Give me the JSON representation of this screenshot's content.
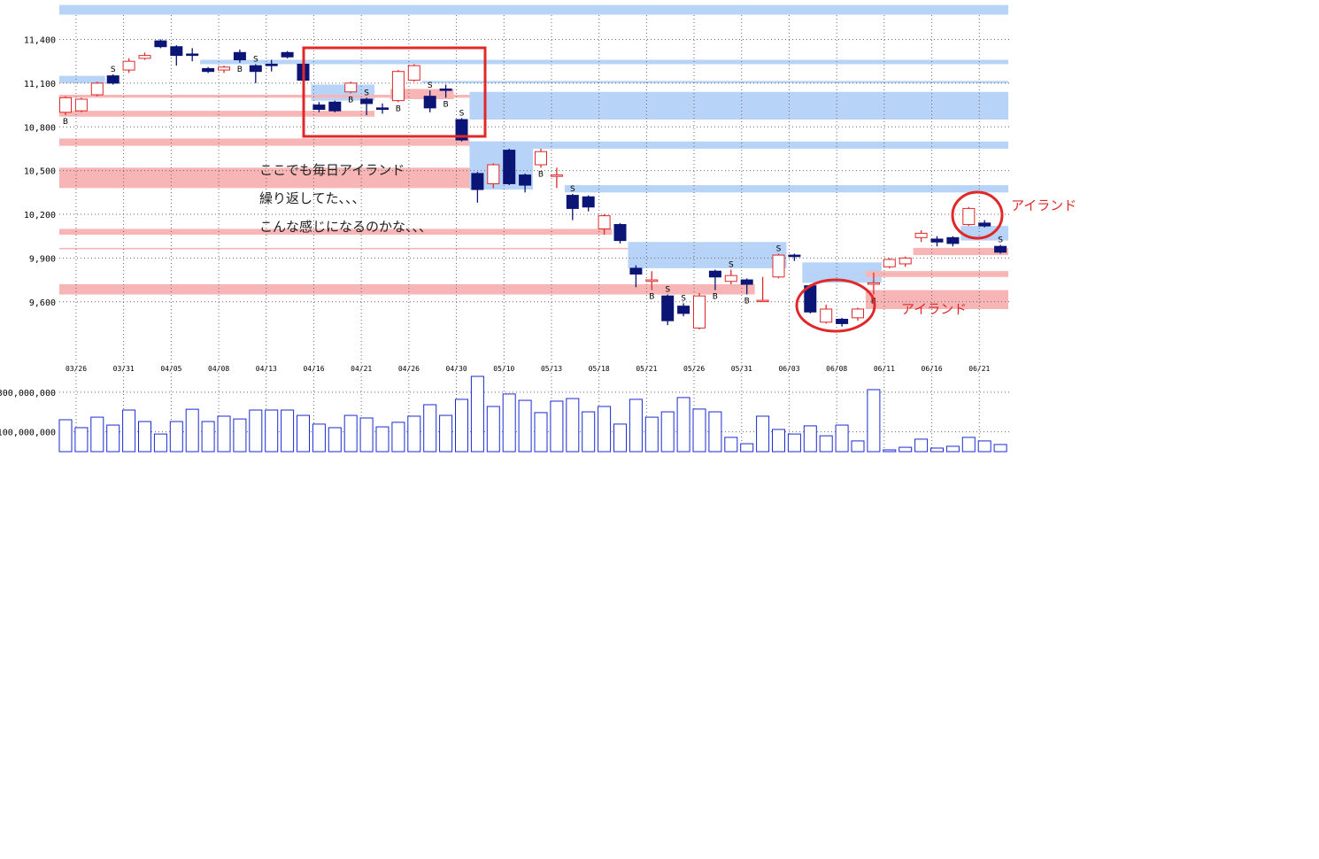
{
  "chart_data": {
    "type": "candlestick",
    "categories": [
      "03/26",
      null,
      null,
      "03/31",
      null,
      null,
      "04/05",
      null,
      null,
      "04/08",
      null,
      null,
      "04/13",
      null,
      null,
      "04/16",
      null,
      null,
      "04/21",
      null,
      null,
      "04/26",
      null,
      null,
      "04/30",
      null,
      null,
      "05/10",
      null,
      null,
      "05/13",
      null,
      null,
      "05/18",
      null,
      null,
      "05/21",
      null,
      null,
      "05/26",
      null,
      null,
      "05/31",
      null,
      null,
      "06/03",
      null,
      null,
      "06/08",
      null,
      null,
      "06/11",
      null,
      null,
      "06/16",
      null,
      null,
      "06/21",
      null,
      null
    ],
    "open": [
      10900,
      10910,
      11020,
      11150,
      11190,
      11270,
      11390,
      11350,
      11300,
      11200,
      11190,
      11310,
      11220,
      11230,
      11310,
      11230,
      10950,
      10970,
      11040,
      10990,
      10930,
      10980,
      11120,
      11010,
      11060,
      10850,
      10480,
      10410,
      10640,
      10470,
      10540,
      10460,
      10330,
      10320,
      10100,
      10130,
      9830,
      9740,
      9640,
      9570,
      9420,
      9810,
      9740,
      9750,
      9610,
      9770,
      9920,
      9710,
      9460,
      9480,
      9490,
      9720,
      9840,
      9860,
      10040,
      10030,
      10040,
      10130,
      10140,
      9980
    ],
    "high": [
      11010,
      11000,
      11110,
      11160,
      11270,
      11310,
      11400,
      11360,
      11340,
      11210,
      11220,
      11330,
      11230,
      11260,
      11320,
      11230,
      10970,
      10980,
      11110,
      11000,
      10960,
      11190,
      11230,
      11050,
      11090,
      10860,
      10490,
      10550,
      10650,
      10480,
      10650,
      10520,
      10340,
      10330,
      10200,
      10140,
      9850,
      9810,
      9650,
      9590,
      9660,
      9820,
      9820,
      9760,
      9770,
      9930,
      9930,
      9720,
      9580,
      9490,
      9560,
      9800,
      9900,
      9910,
      10090,
      10050,
      10050,
      10250,
      10160,
      9990
    ],
    "low": [
      10880,
      10900,
      11010,
      11090,
      11170,
      11260,
      11340,
      11220,
      11250,
      11170,
      11170,
      11240,
      11100,
      11180,
      11270,
      11110,
      10900,
      10900,
      11030,
      10880,
      10890,
      10970,
      11110,
      10900,
      11000,
      10700,
      10280,
      10380,
      10400,
      10350,
      10520,
      10380,
      10160,
      10220,
      10060,
      10000,
      9700,
      9680,
      9440,
      9500,
      9410,
      9680,
      9720,
      9650,
      9600,
      9760,
      9880,
      9520,
      9450,
      9430,
      9470,
      9650,
      9830,
      9840,
      10010,
      9980,
      9980,
      10120,
      10110,
      9930
    ],
    "close": [
      11000,
      10990,
      11100,
      11100,
      11250,
      11290,
      11350,
      11290,
      11290,
      11180,
      11210,
      11260,
      11180,
      11220,
      11280,
      11120,
      10920,
      10910,
      11100,
      10960,
      10920,
      11180,
      11220,
      10930,
      11050,
      10710,
      10370,
      10540,
      10410,
      10400,
      10630,
      10470,
      10240,
      10250,
      10190,
      10020,
      9790,
      9750,
      9470,
      9520,
      9640,
      9770,
      9780,
      9720,
      9610,
      9920,
      9910,
      9530,
      9550,
      9450,
      9550,
      9730,
      9890,
      9900,
      10070,
      10010,
      10000,
      10240,
      10120,
      9940
    ],
    "signals": [
      "B",
      null,
      null,
      "S",
      null,
      null,
      null,
      null,
      null,
      null,
      null,
      "B",
      "S",
      null,
      null,
      null,
      null,
      null,
      "B",
      "S",
      null,
      "B",
      null,
      "S",
      "B",
      "S",
      null,
      null,
      null,
      null,
      "B",
      null,
      "S",
      null,
      null,
      null,
      null,
      "B",
      "S",
      "S",
      null,
      "B",
      "S",
      "B",
      null,
      "S",
      null,
      null,
      null,
      null,
      null,
      "B",
      null,
      null,
      null,
      null,
      null,
      null,
      null,
      "S"
    ],
    "up_color": "#e02828",
    "down_color": "#0b1575",
    "ylim": [
      9240,
      11640
    ],
    "yticks": [
      {
        "value": 9600,
        "label": "9,600"
      },
      {
        "value": 9900,
        "label": "9,900"
      },
      {
        "value": 10200,
        "label": "10,200"
      },
      {
        "value": 10500,
        "label": "10,500"
      },
      {
        "value": 10800,
        "label": "10,800"
      },
      {
        "value": 11100,
        "label": "11,100"
      },
      {
        "value": 11400,
        "label": "11,400"
      }
    ],
    "grid": true,
    "zones": [
      {
        "color": "#b7d3f7",
        "range": [
          11570,
          11636
        ],
        "from": 0,
        "to": 59
      },
      {
        "color": "#b7d3f7",
        "range": [
          11230,
          11260
        ],
        "from": 9,
        "to": 59
      },
      {
        "color": "#b7d3f7",
        "range": [
          11100,
          11150
        ],
        "from": 0,
        "to": 2
      },
      {
        "color": "#b7d3f7",
        "range": [
          11100,
          11115
        ],
        "from": 23,
        "to": 59
      },
      {
        "color": "#b7d3f7",
        "range": [
          10980,
          11090
        ],
        "from": 16,
        "to": 19
      },
      {
        "color": "#b7d3f7",
        "range": [
          10850,
          11040
        ],
        "from": 26,
        "to": 59
      },
      {
        "color": "#b7d3f7",
        "range": [
          10650,
          10700
        ],
        "from": 26,
        "to": 59
      },
      {
        "color": "#b7d3f7",
        "range": [
          10370,
          10700
        ],
        "from": 26,
        "to": 29
      },
      {
        "color": "#b7d3f7",
        "range": [
          10350,
          10400
        ],
        "from": 32,
        "to": 59
      },
      {
        "color": "#b7d3f7",
        "range": [
          9830,
          10010
        ],
        "from": 36,
        "to": 45
      },
      {
        "color": "#b7d3f7",
        "range": [
          9730,
          9870
        ],
        "from": 47,
        "to": 51
      },
      {
        "color": "#b7d3f7",
        "range": [
          10020,
          10120
        ],
        "from": 57,
        "to": 59
      },
      {
        "color": "#f7b5b5",
        "range": [
          11000,
          11020
        ],
        "from": 0,
        "to": 25
      },
      {
        "color": "#f7b5b5",
        "range": [
          10870,
          10910
        ],
        "from": 0,
        "to": 19
      },
      {
        "color": "#f7b5b5",
        "range": [
          10990,
          11060
        ],
        "from": 21,
        "to": 24
      },
      {
        "color": "#f7b5b5",
        "range": [
          10670,
          10720
        ],
        "from": 0,
        "to": 25
      },
      {
        "color": "#f7b5b5",
        "range": [
          10380,
          10520
        ],
        "from": 0,
        "to": 25
      },
      {
        "color": "#f7b5b5",
        "range": [
          10060,
          10100
        ],
        "from": 0,
        "to": 34
      },
      {
        "color": "#f7b5b5",
        "range": [
          9960,
          9970
        ],
        "from": 0,
        "to": 35
      },
      {
        "color": "#f7b5b5",
        "range": [
          9650,
          9720
        ],
        "from": 0,
        "to": 43
      },
      {
        "color": "#f7b5b5",
        "range": [
          9770,
          9810
        ],
        "from": 51,
        "to": 59
      },
      {
        "color": "#f7b5b5",
        "range": [
          9550,
          9680
        ],
        "from": 51,
        "to": 59
      },
      {
        "color": "#f7b5b5",
        "range": [
          9920,
          9970
        ],
        "from": 54,
        "to": 59
      }
    ],
    "volume": {
      "color": "#1a2ad0",
      "values": [
        161000000,
        121000000,
        174000000,
        134000000,
        210000000,
        152000000,
        89000000,
        152000000,
        214000000,
        152000000,
        179000000,
        165000000,
        210000000,
        210000000,
        210000000,
        183000000,
        139000000,
        121000000,
        183000000,
        170000000,
        125000000,
        148000000,
        179000000,
        237000000,
        183000000,
        264000000,
        380000000,
        228000000,
        291000000,
        259000000,
        197000000,
        255000000,
        268000000,
        201000000,
        228000000,
        139000000,
        264000000,
        174000000,
        201000000,
        273000000,
        215000000,
        201000000,
        72000000,
        40000000,
        179000000,
        112000000,
        89000000,
        130000000,
        80000000,
        134000000,
        54000000,
        313000000,
        9000000,
        22000000,
        63000000,
        18000000,
        27000000,
        72000000,
        54000000,
        36000000
      ],
      "ylim": [
        0,
        380000000
      ],
      "yticks": [
        {
          "value": 100000000,
          "label": "100,000,000"
        },
        {
          "value": 300000000,
          "label": "300,000,000"
        }
      ]
    },
    "annotations": [
      "ここでも毎日アイランド",
      "繰り返してた、、、",
      "こんな感じになるのかな、、、",
      "アイランド",
      "アイランド"
    ]
  }
}
